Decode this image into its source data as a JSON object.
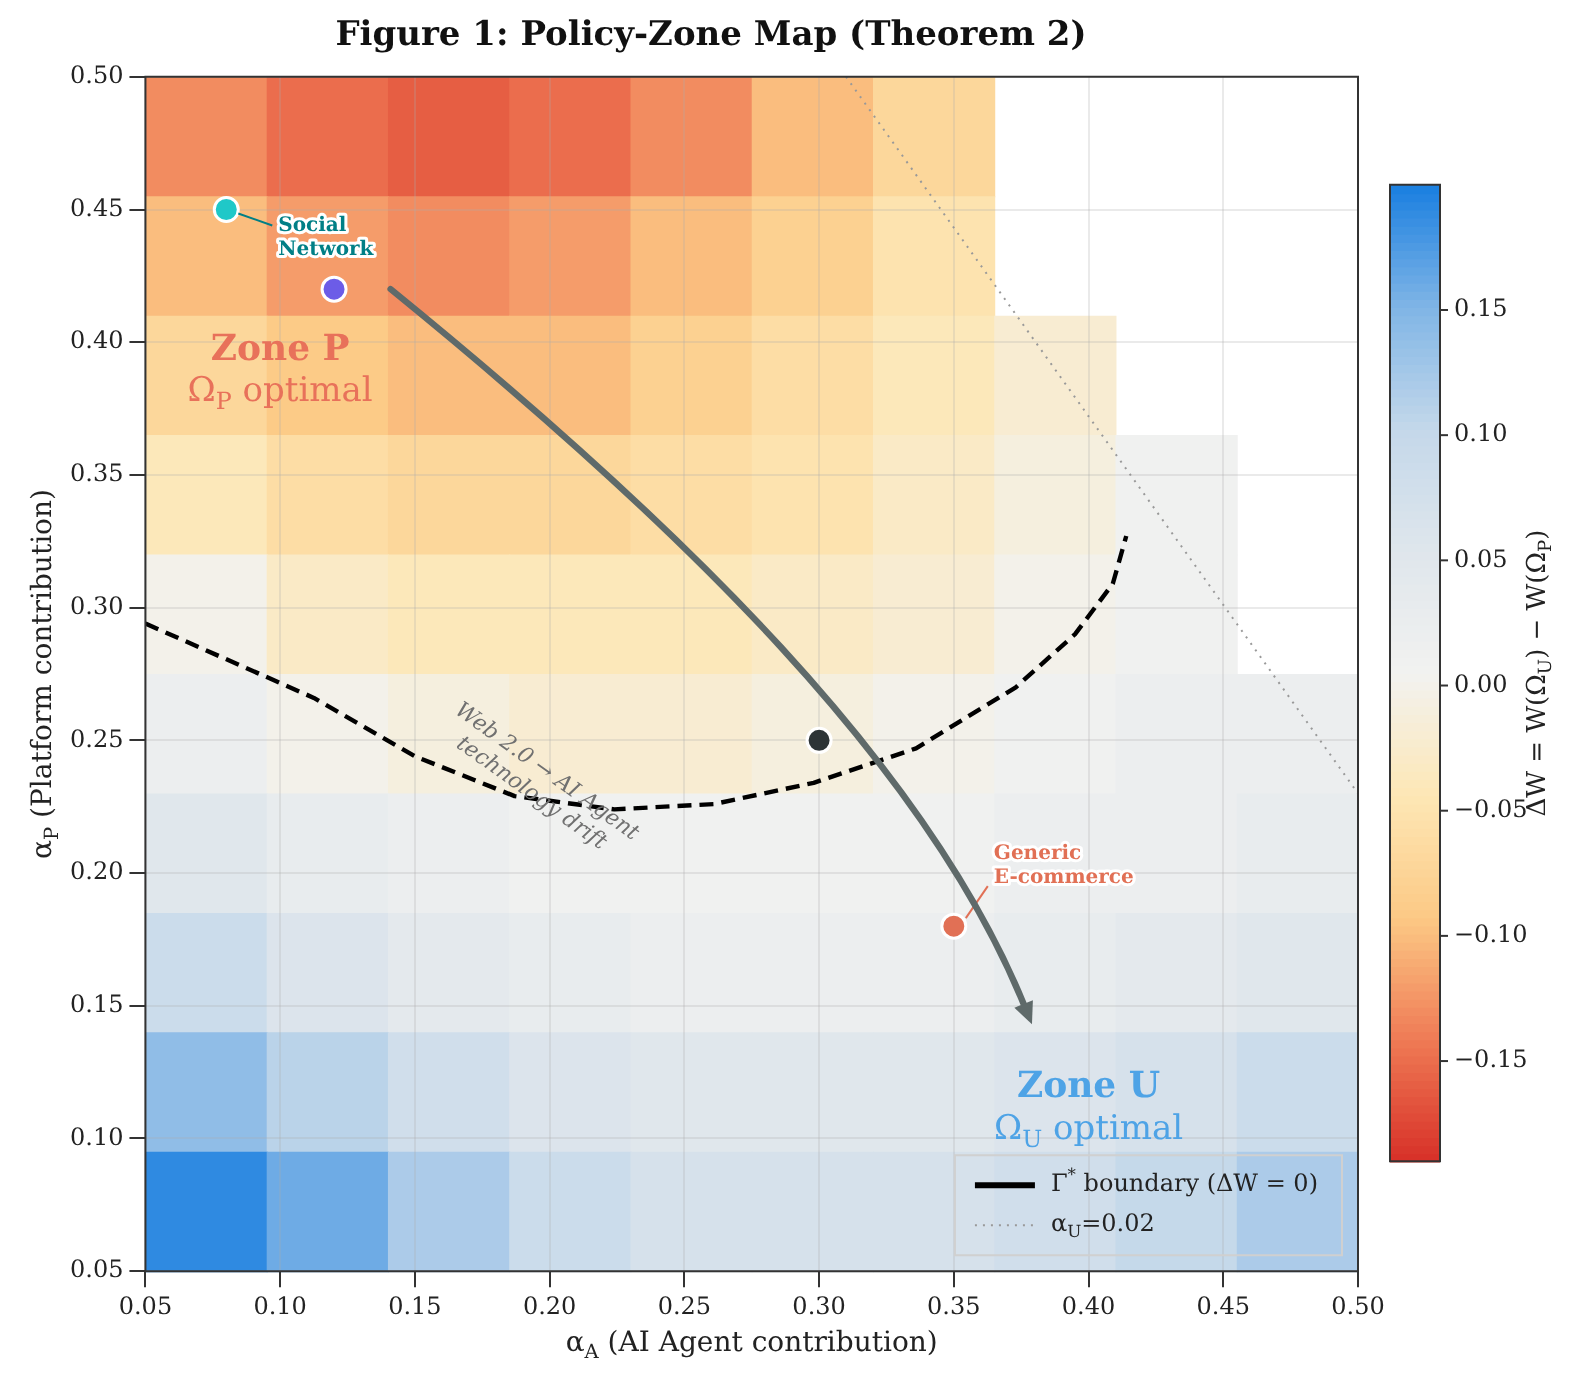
{
  "chart_data": [
    {
      "type": "heatmap",
      "clabel": "ΔW = W(Ω$_{U}$) − W(Ω$_{P}$)",
      "tick_labels": false,
      "categories": [
        null,
        null,
        null,
        null,
        null,
        null,
        null,
        null,
        null,
        null
      ],
      "y_categories": [
        null,
        null,
        null,
        null,
        null,
        null,
        null,
        null,
        null,
        null
      ],
      "cells": [
        [
          -0.13,
          -0.15,
          -0.16,
          -0.15,
          -0.13,
          -0.1,
          -0.07,
          null,
          null,
          null
        ],
        [
          -0.1,
          -0.12,
          -0.13,
          -0.12,
          -0.1,
          -0.08,
          -0.05,
          null,
          null,
          null
        ],
        [
          -0.07,
          -0.09,
          -0.1,
          -0.1,
          -0.08,
          -0.06,
          -0.04,
          -0.02,
          null,
          null
        ],
        [
          -0.04,
          -0.06,
          -0.07,
          -0.07,
          -0.06,
          -0.05,
          -0.03,
          -0.01,
          0.01,
          null
        ],
        [
          0.0,
          -0.03,
          -0.04,
          -0.04,
          -0.04,
          -0.03,
          -0.02,
          0.0,
          0.01,
          null
        ],
        [
          0.02,
          0.0,
          -0.01,
          -0.02,
          -0.02,
          -0.01,
          0.0,
          0.01,
          0.02,
          0.02
        ],
        [
          0.05,
          0.03,
          0.02,
          0.01,
          0.01,
          0.01,
          0.01,
          0.02,
          0.02,
          0.03
        ],
        [
          0.09,
          0.06,
          0.04,
          0.03,
          0.02,
          0.02,
          0.02,
          0.03,
          0.04,
          0.05
        ],
        [
          0.14,
          0.11,
          0.08,
          0.06,
          0.05,
          0.05,
          0.05,
          0.06,
          0.07,
          0.09
        ],
        [
          0.19,
          0.16,
          0.12,
          0.09,
          0.07,
          0.07,
          0.07,
          0.08,
          0.1,
          0.12
        ]
      ],
      "clim": [
        -0.19,
        0.2
      ],
      "cticks": [
        {
          "value": -0.15,
          "label": "−0.15"
        },
        {
          "value": -0.1,
          "label": "−0.10"
        },
        {
          "value": -0.05,
          "label": "−0.05"
        },
        {
          "value": 0,
          "label": "0.00"
        },
        0.05,
        {
          "value": 0.1,
          "label": "0.10"
        },
        0.15
      ]
    },
    {
      "type": "scatter",
      "title": "Figure 1: Policy-Zone Map (Theorem 2)",
      "xlabel": "α$_{A}$ (AI Agent contribution)",
      "ylabel": "α$_{P}$ (Platform contribution)",
      "xlim": [
        0.05,
        0.5
      ],
      "ylim": [
        0.05,
        0.5
      ],
      "xticks": [
        0.05,
        {
          "value": 0.1,
          "label": "0.10"
        },
        0.15,
        {
          "value": 0.2,
          "label": "0.20"
        },
        0.25,
        {
          "value": 0.3,
          "label": "0.30"
        },
        0.35,
        {
          "value": 0.4,
          "label": "0.40"
        },
        0.45,
        {
          "value": 0.5,
          "label": "0.50"
        }
      ],
      "yticks": [
        0.05,
        {
          "value": 0.1,
          "label": "0.10"
        },
        0.15,
        {
          "value": 0.2,
          "label": "0.20"
        },
        0.25,
        {
          "value": 0.3,
          "label": "0.30"
        },
        0.35,
        {
          "value": 0.4,
          "label": "0.40"
        },
        0.45,
        {
          "value": 0.5,
          "label": "0.50"
        }
      ],
      "grid": true,
      "legend": "bottom right",
      "series": [
        {
          "type": "line",
          "name": "Γ$^{*}$ boundary (ΔW = 0)",
          "color": "#000000",
          "line_style": "dashed",
          "x": [
            0.05,
            0.1125,
            0.15,
            0.187,
            0.224,
            0.261,
            0.298,
            0.336,
            0.373,
            0.395,
            0.409,
            0.414
          ],
          "values": [
            0.294,
            0.266,
            0.244,
            0.229,
            0.224,
            0.226,
            0.234,
            0.247,
            0.27,
            0.29,
            0.309,
            0.327
          ]
        },
        {
          "type": "line",
          "name": "α$_{U}$=0.02",
          "color": "#999999",
          "line_style": "dotted",
          "x": [
            0.31,
            0.5
          ],
          "values": [
            0.5,
            0.23
          ]
        },
        {
          "type": "scatter",
          "marker": "circle",
          "x": [
            0.08,
            0.12,
            0.3,
            0.35
          ],
          "values": [
            0.45,
            0.42,
            0.25,
            0.18
          ],
          "colors": [
            "#1fc8c8",
            "#6c5ce7",
            "#2d3436",
            "#e17055"
          ]
        }
      ],
      "annotations": [
        "Social Network",
        "Generic E-commerce",
        "Zone P",
        "Ω$_{P}$ optimal",
        "Zone U",
        "Ω$_{U}$ optimal",
        "Web 2.0 → AI Agent technology drift"
      ]
    }
  ]
}
